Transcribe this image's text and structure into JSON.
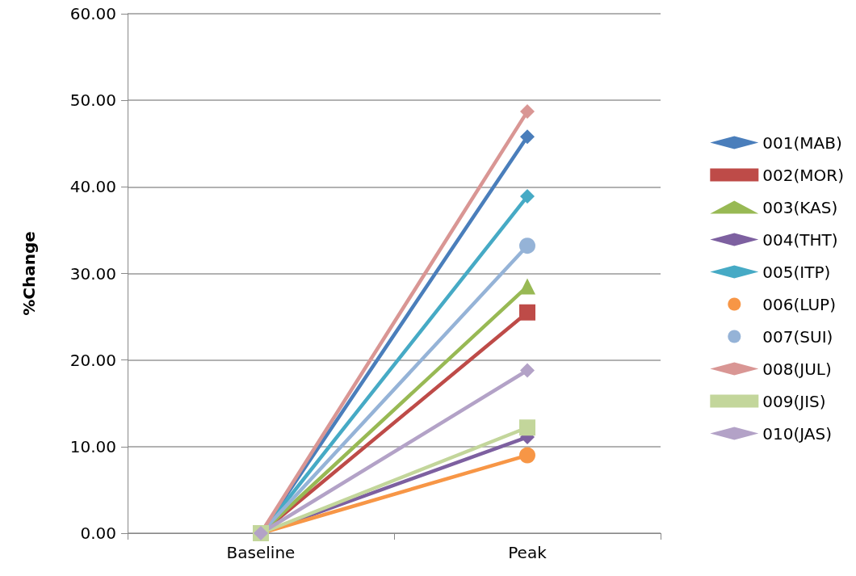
{
  "chart_data": {
    "type": "line",
    "ylabel": "%Change",
    "categories": [
      "Baseline",
      "Peak"
    ],
    "ylim": [
      0,
      60
    ],
    "yticks": [
      {
        "value": 0,
        "label": "0.00"
      },
      {
        "value": 10,
        "label": "10.00"
      },
      {
        "value": 20,
        "label": "20.00"
      },
      {
        "value": 30,
        "label": "30.00"
      },
      {
        "value": 40,
        "label": "40.00"
      },
      {
        "value": 50,
        "label": "50.00"
      },
      {
        "value": 60,
        "label": "60.00"
      }
    ],
    "grid": "y",
    "legend": "right",
    "line_style": "solid",
    "series": [
      {
        "name": "001(MAB)",
        "color": "#4a7ebb",
        "marker": "diamond",
        "values": [
          0,
          45.8
        ]
      },
      {
        "name": "002(MOR)",
        "color": "#be4b48",
        "marker": "square",
        "values": [
          0,
          25.5
        ]
      },
      {
        "name": "003(KAS)",
        "color": "#98b954",
        "marker": "triangle",
        "values": [
          0,
          28.5
        ]
      },
      {
        "name": "004(THT)",
        "color": "#7d60a0",
        "marker": "diamond",
        "values": [
          0,
          11.1
        ]
      },
      {
        "name": "005(ITP)",
        "color": "#46aac5",
        "marker": "diamond",
        "values": [
          0,
          38.9
        ]
      },
      {
        "name": "006(LUP)",
        "color": "#f79646",
        "marker": "circle",
        "values": [
          0,
          9.0
        ]
      },
      {
        "name": "007(SUI)",
        "color": "#95b3d7",
        "marker": "circle",
        "values": [
          0,
          33.2
        ]
      },
      {
        "name": "008(JUL)",
        "color": "#d99694",
        "marker": "diamond",
        "values": [
          0,
          48.7
        ]
      },
      {
        "name": "009(JIS)",
        "color": "#c3d69b",
        "marker": "square",
        "values": [
          0,
          12.2
        ]
      },
      {
        "name": "010(JAS)",
        "color": "#b3a2c7",
        "marker": "diamond",
        "values": [
          0,
          18.8
        ]
      }
    ]
  }
}
